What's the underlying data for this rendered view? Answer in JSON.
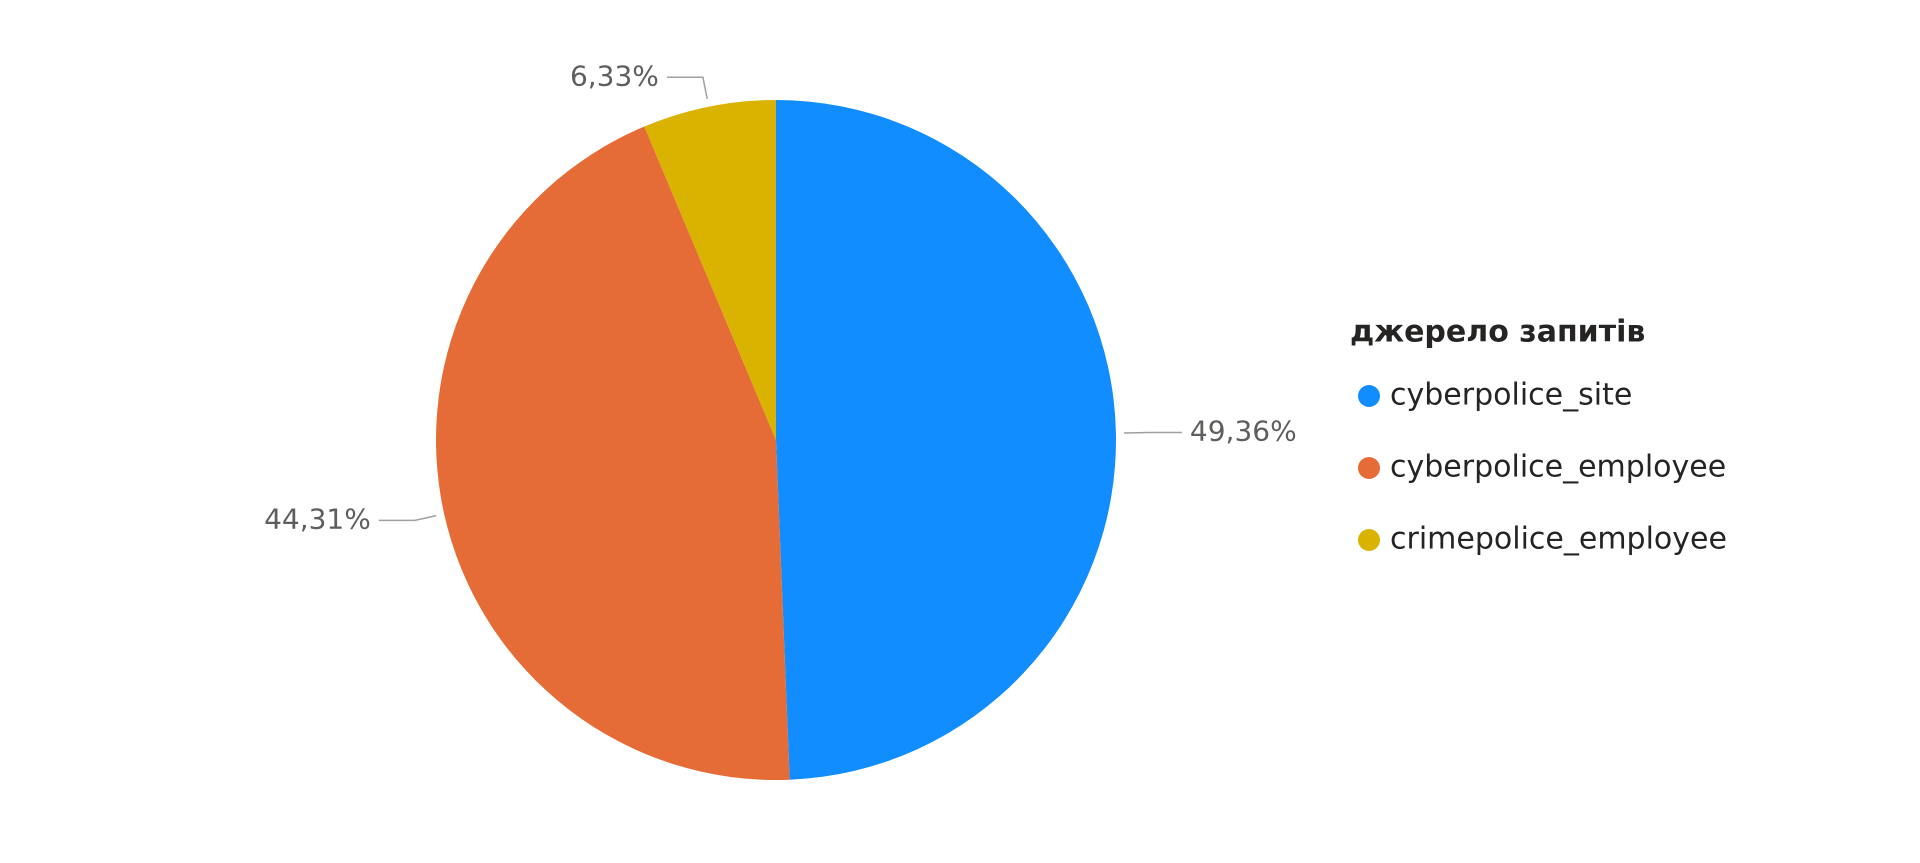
{
  "chart_data": {
    "type": "pie",
    "legend_title": "джерело запитів",
    "categories": [
      "cyberpolice_site",
      "cyberpolice_employee",
      "crimepolice_employee"
    ],
    "values": [
      49.36,
      44.31,
      6.33
    ],
    "value_labels": [
      "49,36%",
      "44,31%",
      "6,33%"
    ],
    "colors": [
      "#118DFF",
      "#E66C37",
      "#D9B300"
    ],
    "legend": "right"
  }
}
